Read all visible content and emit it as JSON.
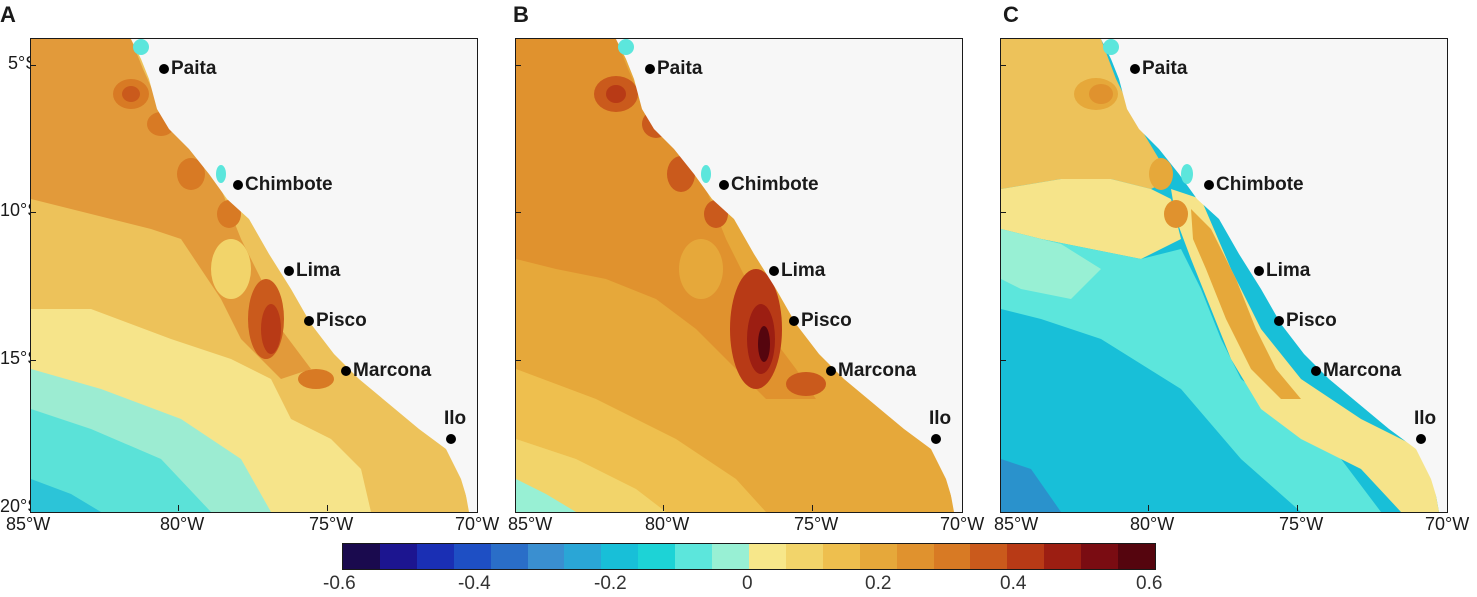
{
  "panels": [
    {
      "letter": "A"
    },
    {
      "letter": "B"
    },
    {
      "letter": "C"
    }
  ],
  "cities": [
    {
      "name": "Paita"
    },
    {
      "name": "Chimbote"
    },
    {
      "name": "Lima"
    },
    {
      "name": "Pisco"
    },
    {
      "name": "Marcona"
    },
    {
      "name": "Ilo"
    }
  ],
  "axes": {
    "y_ticks": [
      "5°S",
      "10°S",
      "15°S",
      "20°S"
    ],
    "x_ticks": [
      "85°W",
      "80°W",
      "75°W",
      "70°W"
    ]
  },
  "colorbar": {
    "tick_labels": [
      "-0.6",
      "-0.4",
      "-0.2",
      "0",
      "0.2",
      "0.4",
      "0.6"
    ],
    "range": [
      -0.6,
      0.6
    ],
    "colors": [
      "#1a0a4e",
      "#1c1590",
      "#1a2fb4",
      "#1e4fc4",
      "#2a6ec8",
      "#3a8fd0",
      "#2aa6d6",
      "#18bfd8",
      "#1dd3d6",
      "#5ce6dc",
      "#98f0d4",
      "#f7e78a",
      "#f2d46a",
      "#eebf4e",
      "#e6a83a",
      "#e0922e",
      "#d87a24",
      "#ca5a1c",
      "#b83a16",
      "#9c1e12",
      "#7a0c12",
      "#55050e"
    ]
  },
  "colors": {
    "land": "#f7f7f7",
    "text": "#1a1a1a"
  }
}
